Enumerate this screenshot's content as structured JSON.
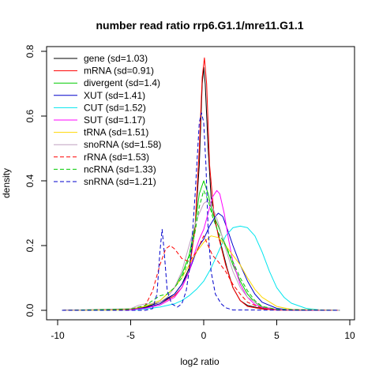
{
  "chart_data": {
    "type": "line",
    "title": "number read ratio rrp6.G1.1/mre11.G1.1",
    "xlabel": "log2 ratio",
    "ylabel": "density",
    "xlim": [
      -10,
      10
    ],
    "ylim": [
      0,
      0.8
    ],
    "xticks": [
      "-10",
      "-5",
      "0",
      "5",
      "10"
    ],
    "yticks": [
      "0.0",
      "0.2",
      "0.4",
      "0.6",
      "0.8"
    ],
    "legend_position": "top-left",
    "series": [
      {
        "name": "gene (sd=1.03)",
        "color": "#000000",
        "dash": false,
        "points": [
          [
            -9.7,
            0
          ],
          [
            -5,
            0.003
          ],
          [
            -4,
            0.01
          ],
          [
            -3,
            0.025
          ],
          [
            -2,
            0.05
          ],
          [
            -1.5,
            0.08
          ],
          [
            -1,
            0.13
          ],
          [
            -0.6,
            0.25
          ],
          [
            -0.3,
            0.45
          ],
          [
            -0.1,
            0.7
          ],
          [
            0,
            0.75
          ],
          [
            0.1,
            0.7
          ],
          [
            0.3,
            0.5
          ],
          [
            0.5,
            0.35
          ],
          [
            0.8,
            0.27
          ],
          [
            1.2,
            0.2
          ],
          [
            1.6,
            0.13
          ],
          [
            2,
            0.07
          ],
          [
            2.5,
            0.03
          ],
          [
            3,
            0.015
          ],
          [
            4,
            0.005
          ],
          [
            5,
            0.001
          ],
          [
            9.3,
            0
          ]
        ]
      },
      {
        "name": "mRNA (sd=0.91)",
        "color": "#ff0000",
        "dash": false,
        "points": [
          [
            -9.7,
            0
          ],
          [
            -5,
            0.002
          ],
          [
            -4,
            0.008
          ],
          [
            -3,
            0.02
          ],
          [
            -2,
            0.045
          ],
          [
            -1.5,
            0.07
          ],
          [
            -1,
            0.12
          ],
          [
            -0.6,
            0.25
          ],
          [
            -0.3,
            0.5
          ],
          [
            -0.1,
            0.72
          ],
          [
            0.05,
            0.78
          ],
          [
            0.2,
            0.7
          ],
          [
            0.4,
            0.45
          ],
          [
            0.7,
            0.3
          ],
          [
            1,
            0.23
          ],
          [
            1.5,
            0.14
          ],
          [
            2,
            0.07
          ],
          [
            2.5,
            0.03
          ],
          [
            3,
            0.012
          ],
          [
            4,
            0.004
          ],
          [
            5,
            0.001
          ],
          [
            9.3,
            0
          ]
        ]
      },
      {
        "name": "divergent (sd=1.4)",
        "color": "#00cc00",
        "dash": false,
        "points": [
          [
            -9.7,
            0
          ],
          [
            -5,
            0.004
          ],
          [
            -4,
            0.012
          ],
          [
            -3,
            0.03
          ],
          [
            -2,
            0.07
          ],
          [
            -1.5,
            0.11
          ],
          [
            -1,
            0.17
          ],
          [
            -0.6,
            0.26
          ],
          [
            -0.3,
            0.36
          ],
          [
            0,
            0.4
          ],
          [
            0.3,
            0.36
          ],
          [
            0.6,
            0.3
          ],
          [
            1,
            0.26
          ],
          [
            1.5,
            0.2
          ],
          [
            2,
            0.14
          ],
          [
            2.5,
            0.09
          ],
          [
            3,
            0.05
          ],
          [
            3.5,
            0.025
          ],
          [
            4,
            0.01
          ],
          [
            5,
            0.003
          ],
          [
            9.3,
            0
          ]
        ]
      },
      {
        "name": "XUT (sd=1.41)",
        "color": "#0000cc",
        "dash": false,
        "points": [
          [
            -9.7,
            0
          ],
          [
            -5,
            0.002
          ],
          [
            -4,
            0.008
          ],
          [
            -3,
            0.02
          ],
          [
            -2,
            0.05
          ],
          [
            -1.5,
            0.08
          ],
          [
            -1,
            0.12
          ],
          [
            -0.6,
            0.17
          ],
          [
            -0.3,
            0.2
          ],
          [
            0,
            0.22
          ],
          [
            0.4,
            0.26
          ],
          [
            0.8,
            0.29
          ],
          [
            1,
            0.3
          ],
          [
            1.3,
            0.29
          ],
          [
            1.7,
            0.24
          ],
          [
            2,
            0.2
          ],
          [
            2.5,
            0.14
          ],
          [
            3,
            0.09
          ],
          [
            3.5,
            0.05
          ],
          [
            4,
            0.025
          ],
          [
            5,
            0.006
          ],
          [
            6,
            0.001
          ],
          [
            9.3,
            0
          ]
        ]
      },
      {
        "name": "CUT (sd=1.52)",
        "color": "#00e5ee",
        "dash": false,
        "points": [
          [
            -9.7,
            0
          ],
          [
            -5,
            0.001
          ],
          [
            -4,
            0.004
          ],
          [
            -3,
            0.01
          ],
          [
            -2,
            0.02
          ],
          [
            -1.5,
            0.03
          ],
          [
            -1,
            0.045
          ],
          [
            -0.5,
            0.065
          ],
          [
            0,
            0.09
          ],
          [
            0.5,
            0.13
          ],
          [
            1,
            0.18
          ],
          [
            1.5,
            0.23
          ],
          [
            2,
            0.255
          ],
          [
            2.5,
            0.26
          ],
          [
            3,
            0.255
          ],
          [
            3.5,
            0.23
          ],
          [
            4,
            0.18
          ],
          [
            4.5,
            0.12
          ],
          [
            5,
            0.07
          ],
          [
            5.5,
            0.04
          ],
          [
            6,
            0.022
          ],
          [
            7,
            0.006
          ],
          [
            8,
            0.001
          ],
          [
            9.3,
            0
          ]
        ]
      },
      {
        "name": "SUT (sd=1.17)",
        "color": "#ff00ff",
        "dash": false,
        "points": [
          [
            -9.7,
            0
          ],
          [
            -5,
            0.002
          ],
          [
            -4,
            0.006
          ],
          [
            -3,
            0.016
          ],
          [
            -2,
            0.04
          ],
          [
            -1.5,
            0.07
          ],
          [
            -1,
            0.12
          ],
          [
            -0.6,
            0.18
          ],
          [
            -0.3,
            0.22
          ],
          [
            0,
            0.25
          ],
          [
            0.3,
            0.3
          ],
          [
            0.6,
            0.35
          ],
          [
            0.9,
            0.37
          ],
          [
            1.1,
            0.36
          ],
          [
            1.4,
            0.3
          ],
          [
            1.7,
            0.22
          ],
          [
            2,
            0.15
          ],
          [
            2.5,
            0.08
          ],
          [
            3,
            0.04
          ],
          [
            3.5,
            0.018
          ],
          [
            4,
            0.008
          ],
          [
            5,
            0.002
          ],
          [
            9.3,
            0
          ]
        ]
      },
      {
        "name": "tRNA (sd=1.51)",
        "color": "#ffd700",
        "dash": false,
        "points": [
          [
            -9.7,
            0
          ],
          [
            -6,
            0.001
          ],
          [
            -5,
            0.004
          ],
          [
            -4,
            0.012
          ],
          [
            -3,
            0.03
          ],
          [
            -2,
            0.07
          ],
          [
            -1.5,
            0.1
          ],
          [
            -1,
            0.14
          ],
          [
            -0.5,
            0.18
          ],
          [
            0,
            0.21
          ],
          [
            0.5,
            0.23
          ],
          [
            1,
            0.225
          ],
          [
            1.5,
            0.2
          ],
          [
            2,
            0.17
          ],
          [
            2.5,
            0.14
          ],
          [
            3,
            0.1
          ],
          [
            3.5,
            0.065
          ],
          [
            4,
            0.04
          ],
          [
            5,
            0.012
          ],
          [
            6,
            0.003
          ],
          [
            9.3,
            0
          ]
        ]
      },
      {
        "name": "snoRNA (sd=1.58)",
        "color": "#c0a0c0",
        "dash": false,
        "points": [
          [
            -9.7,
            0
          ],
          [
            -5,
            0.005
          ],
          [
            -4.5,
            0.015
          ],
          [
            -4,
            0.02
          ],
          [
            -3.5,
            0.02
          ],
          [
            -3,
            0.025
          ],
          [
            -2.5,
            0.04
          ],
          [
            -2,
            0.07
          ],
          [
            -1.5,
            0.12
          ],
          [
            -1,
            0.2
          ],
          [
            -0.5,
            0.28
          ],
          [
            0,
            0.33
          ],
          [
            0.3,
            0.34
          ],
          [
            0.6,
            0.32
          ],
          [
            1,
            0.27
          ],
          [
            1.5,
            0.19
          ],
          [
            2,
            0.12
          ],
          [
            2.5,
            0.07
          ],
          [
            3,
            0.04
          ],
          [
            4,
            0.012
          ],
          [
            5,
            0.003
          ],
          [
            9.3,
            0
          ]
        ]
      },
      {
        "name": "rRNA (sd=1.53)",
        "color": "#ff0000",
        "dash": true,
        "points": [
          [
            -9.7,
            0
          ],
          [
            -5,
            0.003
          ],
          [
            -4,
            0.015
          ],
          [
            -3.5,
            0.06
          ],
          [
            -3,
            0.14
          ],
          [
            -2.6,
            0.19
          ],
          [
            -2.3,
            0.2
          ],
          [
            -2,
            0.19
          ],
          [
            -1.5,
            0.16
          ],
          [
            -1,
            0.15
          ],
          [
            -0.5,
            0.18
          ],
          [
            0,
            0.23
          ],
          [
            0.3,
            0.2
          ],
          [
            0.6,
            0.17
          ],
          [
            1,
            0.15
          ],
          [
            1.5,
            0.12
          ],
          [
            2,
            0.08
          ],
          [
            2.5,
            0.05
          ],
          [
            3,
            0.025
          ],
          [
            4,
            0.006
          ],
          [
            5,
            0.001
          ],
          [
            9.3,
            0
          ]
        ]
      },
      {
        "name": "ncRNA (sd=1.33)",
        "color": "#00cc00",
        "dash": true,
        "points": [
          [
            -9.7,
            0
          ],
          [
            -5,
            0.004
          ],
          [
            -4,
            0.015
          ],
          [
            -3.5,
            0.03
          ],
          [
            -3,
            0.045
          ],
          [
            -2.5,
            0.05
          ],
          [
            -2,
            0.07
          ],
          [
            -1.5,
            0.1
          ],
          [
            -1,
            0.16
          ],
          [
            -0.6,
            0.24
          ],
          [
            -0.3,
            0.32
          ],
          [
            0,
            0.37
          ],
          [
            0.3,
            0.34
          ],
          [
            0.6,
            0.29
          ],
          [
            1,
            0.24
          ],
          [
            1.5,
            0.2
          ],
          [
            2,
            0.15
          ],
          [
            2.5,
            0.1
          ],
          [
            3,
            0.06
          ],
          [
            3.5,
            0.03
          ],
          [
            4,
            0.012
          ],
          [
            5,
            0.003
          ],
          [
            9.3,
            0
          ]
        ]
      },
      {
        "name": "snRNA (sd=1.21)",
        "color": "#0000cc",
        "dash": true,
        "points": [
          [
            -9.7,
            0
          ],
          [
            -4,
            0
          ],
          [
            -3.5,
            0.005
          ],
          [
            -3.2,
            0.05
          ],
          [
            -3,
            0.18
          ],
          [
            -2.85,
            0.25
          ],
          [
            -2.7,
            0.18
          ],
          [
            -2.5,
            0.06
          ],
          [
            -2.2,
            0.02
          ],
          [
            -1.8,
            0.01
          ],
          [
            -1.5,
            0.02
          ],
          [
            -1.2,
            0.06
          ],
          [
            -0.9,
            0.15
          ],
          [
            -0.6,
            0.35
          ],
          [
            -0.3,
            0.58
          ],
          [
            -0.15,
            0.61
          ],
          [
            0,
            0.58
          ],
          [
            0.15,
            0.45
          ],
          [
            0.3,
            0.25
          ],
          [
            0.5,
            0.12
          ],
          [
            0.8,
            0.05
          ],
          [
            1.2,
            0.02
          ],
          [
            1.5,
            0.008
          ],
          [
            2,
            0.001
          ],
          [
            9.3,
            0
          ]
        ]
      }
    ]
  }
}
